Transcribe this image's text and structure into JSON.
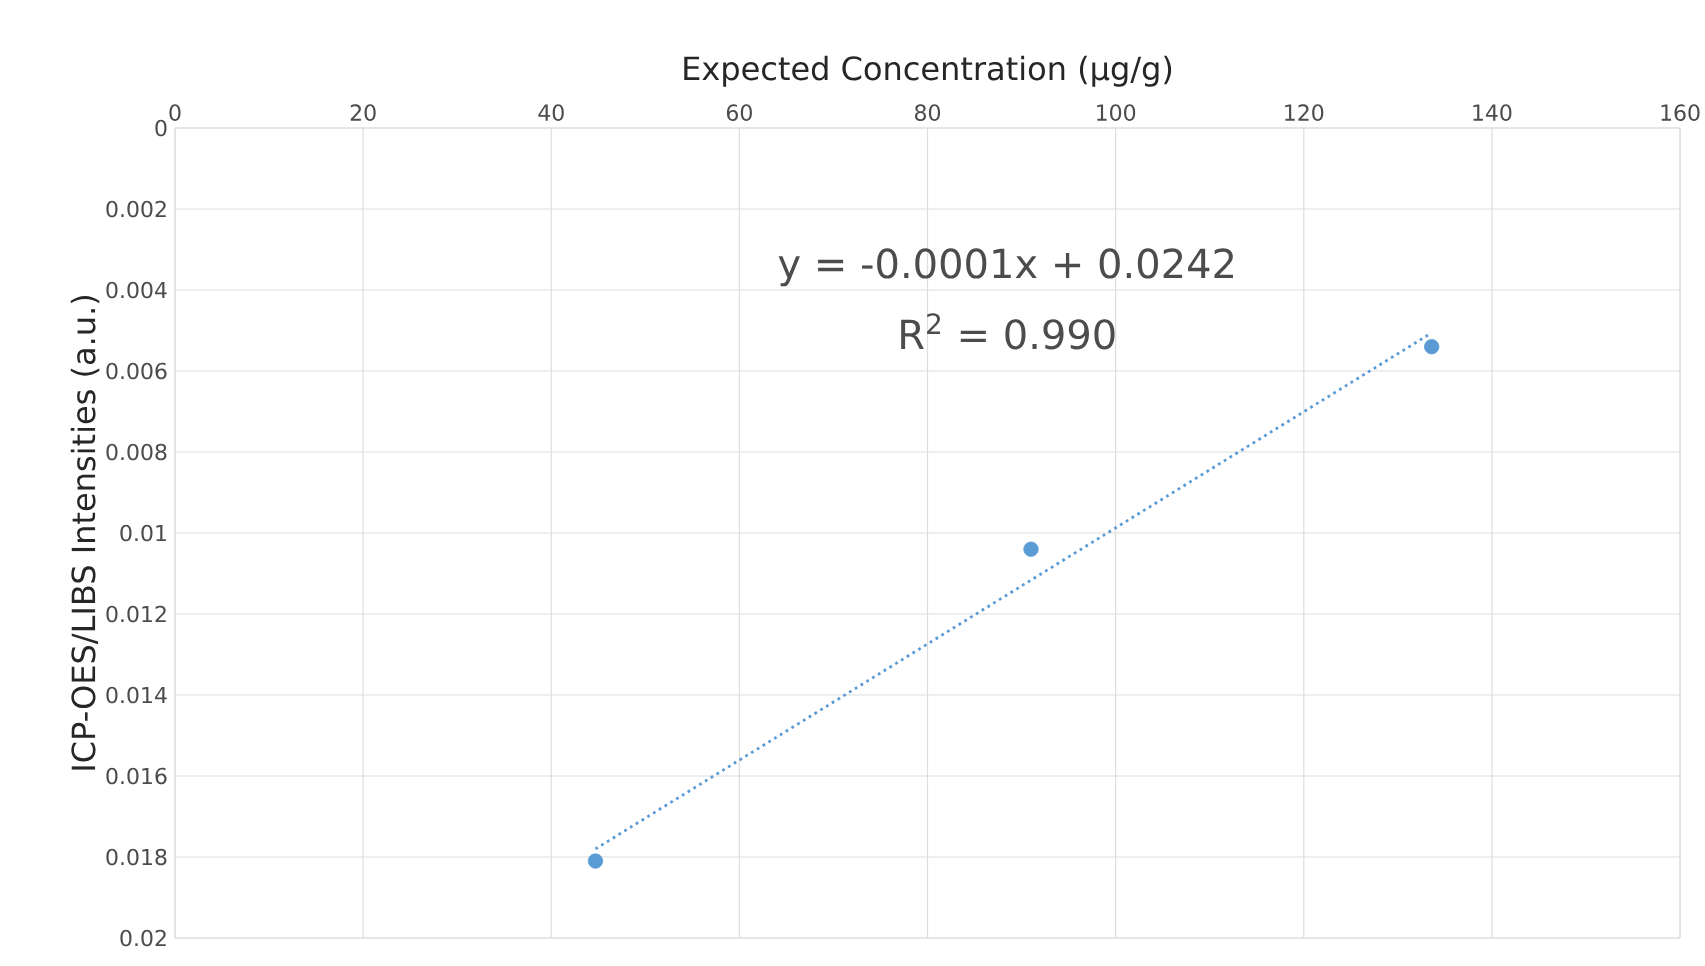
{
  "chart_data": {
    "type": "scatter",
    "xlabel": "Expected Concentration (µg/g)",
    "ylabel": "ICP-OES/LIBS Intensities (a.u.)",
    "annotations": [
      "y = -0.0001x + 0.0242",
      "R$^{2}$ = 0.990"
    ],
    "xlim": [
      0,
      160
    ],
    "xticks": [
      0,
      20,
      40,
      60,
      80,
      100,
      120,
      140,
      160
    ],
    "ylim": [
      0.02,
      0
    ],
    "yticks": [
      0,
      0.002,
      0.004,
      0.006,
      0.008,
      0.01,
      0.012,
      0.014,
      0.016,
      0.018,
      0.02
    ],
    "grid": true,
    "series": [
      {
        "color": "#5b9bd5",
        "marker": "circle",
        "x": [
          44.7,
          91.0,
          133.6
        ],
        "values": [
          0.0181,
          0.0104,
          0.0054
        ]
      },
      {
        "type": "line",
        "color": "#5b9bd5",
        "marker": "none",
        "line_style": "dotted",
        "x": [
          44.7,
          133.3
        ],
        "values": [
          0.0178,
          0.0051
        ]
      }
    ]
  }
}
